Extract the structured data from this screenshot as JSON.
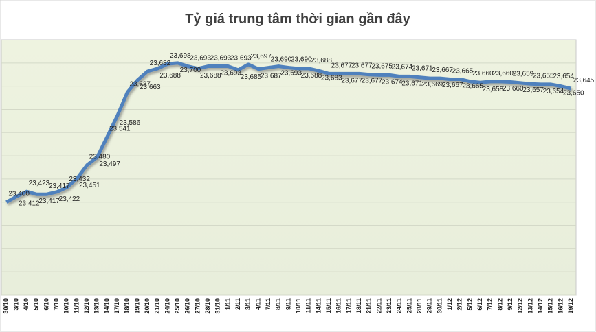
{
  "chart_data": {
    "type": "line",
    "title": "Tỷ giá trung tâm thời gian gần đây",
    "categories": [
      "30/10",
      "3/10",
      "4/10",
      "5/10",
      "6/10",
      "7/10",
      "10/10",
      "11/10",
      "12/10",
      "13/10",
      "14/10",
      "17/10",
      "18/10",
      "19/10",
      "20/10",
      "21/10",
      "24/10",
      "25/10",
      "26/10",
      "27/10",
      "28/10",
      "31/10",
      "1/11",
      "2/11",
      "3/11",
      "4/11",
      "7/11",
      "8/11",
      "9/11",
      "10/11",
      "11/11",
      "14/11",
      "15/11",
      "16/11",
      "17/11",
      "18/11",
      "21/11",
      "22/11",
      "23/11",
      "24/11",
      "25/11",
      "28/11",
      "29/11",
      "30/11",
      "1/12",
      "2/12",
      "5/12",
      "6/12",
      "7/12",
      "8/12",
      "9/12",
      "12/12",
      "13/12",
      "14/12",
      "15/12",
      "16/12",
      "19/12"
    ],
    "series": [
      {
        "name": "Tỷ giá trung tâm",
        "color": "#4f81bd",
        "values": [
          23400,
          23412,
          23423,
          23417,
          23417,
          23422,
          23432,
          23451,
          23480,
          23497,
          23541,
          23586,
          23637,
          23663,
          23682,
          23688,
          23698,
          23700,
          23693,
          23688,
          23693,
          23693,
          23693,
          23685,
          23697,
          23687,
          23690,
          23693,
          23690,
          23688,
          23688,
          23683,
          23677,
          23677,
          23677,
          23677,
          23675,
          23674,
          23674,
          23671,
          23671,
          23669,
          23667,
          23667,
          23665,
          23665,
          23660,
          23658,
          23660,
          23660,
          23659,
          23657,
          23655,
          23654,
          23654,
          23650,
          23645
        ],
        "value_labels": [
          "23,400",
          "23,412",
          "23,423",
          "23,417",
          "23,417",
          "23,422",
          "23,432",
          "23,451",
          "23,480",
          "23,497",
          "23,541",
          "23,586",
          "23,637",
          "23,663",
          "23,682",
          "23,688",
          "23,698",
          "23,700",
          "23,693",
          "23,688",
          "23,693",
          "23,693",
          "23,693",
          "23,685",
          "23,697",
          "23,687",
          "23,690",
          "23,693",
          "23,690",
          "23,688",
          "23,688",
          "23,683",
          "23,677",
          "23,677",
          "23,677",
          "23,677",
          "23,675",
          "23,674",
          "23,674",
          "23,671",
          "23,671",
          "23,669",
          "23,667",
          "23,667",
          "23,665",
          "23,665",
          "23,660",
          "23,658",
          "23,660",
          "23,660",
          "23,659",
          "23,657",
          "23,655",
          "23,654",
          "23,654",
          "23,650",
          "23,645"
        ]
      }
    ],
    "ylim": [
      23200,
      23750
    ],
    "yticks": [
      23200,
      23250,
      23300,
      23350,
      23400,
      23450,
      23500,
      23550,
      23600,
      23650,
      23700
    ],
    "grid": true
  }
}
